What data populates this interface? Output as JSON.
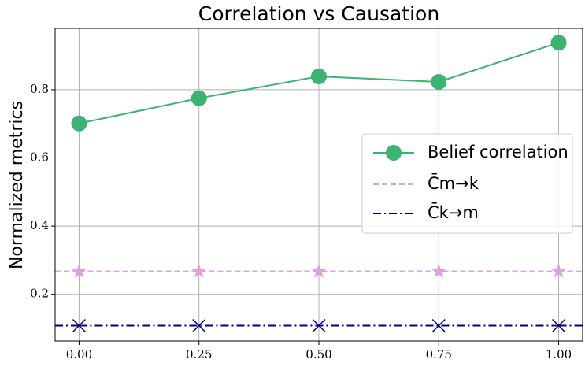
{
  "chart_data": {
    "type": "line",
    "title": "Correlation vs Causation",
    "y_label": "Normalized metrics",
    "x": [
      0,
      0.25,
      0.5,
      0.75,
      1.0
    ],
    "series": [
      {
        "name": "Belief correlation",
        "color": "#3cb371",
        "marker": "circle",
        "linestyle": "solid",
        "values": [
          0.701,
          0.775,
          0.839,
          0.823,
          0.938
        ]
      },
      {
        "name": "C̄m→k",
        "color": "#dda0dd",
        "marker": "star",
        "linestyle": "dashed",
        "values": [
          0.267,
          0.267,
          0.267,
          0.267,
          0.267
        ]
      },
      {
        "name": "C̄k→m",
        "color": "#000080",
        "marker": "x",
        "linestyle": "dashdot",
        "values": [
          0.108,
          0.108,
          0.108,
          0.108,
          0.108
        ]
      }
    ],
    "xlim": [
      -0.05,
      1.05
    ],
    "ylim": [
      0.063,
      0.98
    ],
    "xticks": [
      {
        "value": 0,
        "label": "0.00"
      },
      {
        "value": 0.25,
        "label": "0.25"
      },
      {
        "value": 0.5,
        "label": "0.50"
      },
      {
        "value": 0.75,
        "label": "0.75"
      },
      {
        "value": 1.0,
        "label": "1.00"
      }
    ],
    "yticks": [
      0.2,
      0.4,
      0.6,
      0.8
    ],
    "grid": true,
    "legend": "center right"
  }
}
